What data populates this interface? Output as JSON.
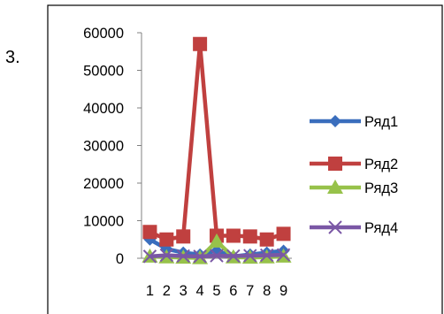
{
  "item_number": "3.",
  "chart_data": {
    "type": "line",
    "categories": [
      "1",
      "2",
      "3",
      "4",
      "5",
      "6",
      "7",
      "8",
      "9"
    ],
    "ylim": [
      0,
      60000
    ],
    "yticks": [
      0,
      10000,
      20000,
      30000,
      40000,
      50000,
      60000
    ],
    "legend_position": "right",
    "series": [
      {
        "name": "Ряд1",
        "color": "#3a6ebd",
        "marker": "diamond",
        "values": [
          5000,
          2500,
          1500,
          1000,
          2000,
          500,
          1000,
          1500,
          2000
        ]
      },
      {
        "name": "Ряд2",
        "color": "#c0403f",
        "marker": "square",
        "values": [
          7000,
          5000,
          5800,
          57000,
          6000,
          6000,
          5800,
          5000,
          6500
        ]
      },
      {
        "name": "Ряд3",
        "color": "#97c24a",
        "marker": "triangle",
        "values": [
          500,
          300,
          200,
          100,
          4500,
          300,
          200,
          300,
          500
        ]
      },
      {
        "name": "Ряд4",
        "color": "#7a57a5",
        "marker": "x",
        "values": [
          500,
          800,
          600,
          500,
          700,
          600,
          700,
          800,
          900
        ]
      }
    ]
  }
}
